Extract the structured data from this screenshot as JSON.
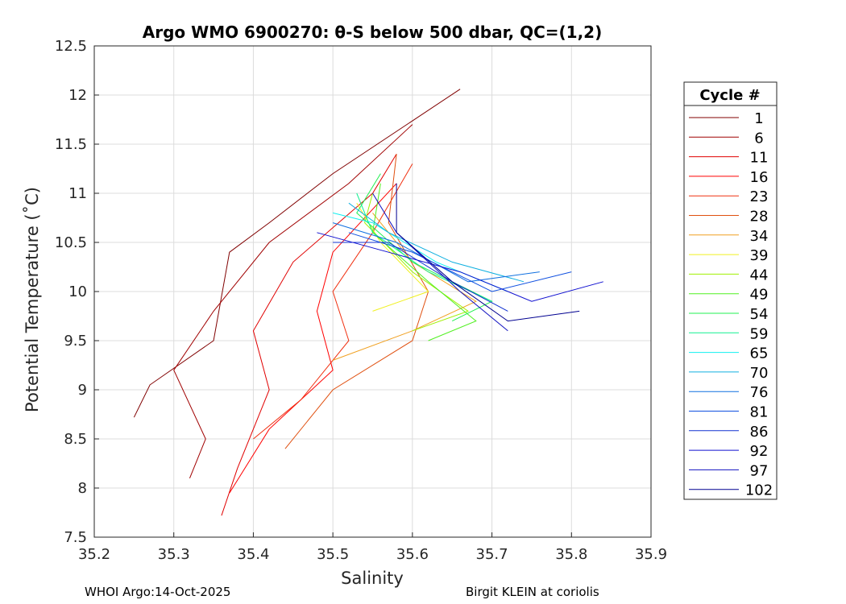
{
  "chart_data": {
    "type": "line",
    "title": "Argo WMO 6900270: θ-S below 500 dbar,  QC=(1,2)",
    "xlabel": "Salinity",
    "ylabel": "Potential Temperature (˚C)",
    "xlim": [
      35.2,
      35.9
    ],
    "ylim": [
      7.5,
      12.5
    ],
    "xticks": [
      35.2,
      35.3,
      35.4,
      35.5,
      35.6,
      35.7,
      35.8,
      35.9
    ],
    "yticks": [
      7.5,
      8,
      8.5,
      9,
      9.5,
      10,
      10.5,
      11,
      11.5,
      12,
      12.5
    ],
    "grid": true,
    "legend_title": "Cycle #",
    "legend_position": "outside-right",
    "series": [
      {
        "name": "1",
        "color": "#800000",
        "points": [
          [
            35.25,
            8.72
          ],
          [
            35.27,
            9.05
          ],
          [
            35.35,
            9.5
          ],
          [
            35.37,
            10.4
          ],
          [
            35.42,
            10.7
          ],
          [
            35.5,
            11.2
          ],
          [
            35.66,
            12.06
          ]
        ]
      },
      {
        "name": "6",
        "color": "#a00000",
        "points": [
          [
            35.32,
            8.1
          ],
          [
            35.34,
            8.5
          ],
          [
            35.3,
            9.2
          ],
          [
            35.35,
            9.8
          ],
          [
            35.42,
            10.5
          ],
          [
            35.52,
            11.1
          ],
          [
            35.6,
            11.7
          ]
        ]
      },
      {
        "name": "11",
        "color": "#e00000",
        "points": [
          [
            35.36,
            7.72
          ],
          [
            35.38,
            8.2
          ],
          [
            35.42,
            9.0
          ],
          [
            35.4,
            9.6
          ],
          [
            35.45,
            10.3
          ],
          [
            35.55,
            11.0
          ],
          [
            35.58,
            11.4
          ]
        ]
      },
      {
        "name": "16",
        "color": "#ff0000",
        "points": [
          [
            35.37,
            7.95
          ],
          [
            35.42,
            8.6
          ],
          [
            35.5,
            9.2
          ],
          [
            35.48,
            9.8
          ],
          [
            35.5,
            10.4
          ],
          [
            35.58,
            11.1
          ]
        ]
      },
      {
        "name": "23",
        "color": "#f03010",
        "points": [
          [
            35.4,
            8.5
          ],
          [
            35.46,
            8.9
          ],
          [
            35.52,
            9.5
          ],
          [
            35.5,
            10.0
          ],
          [
            35.55,
            10.6
          ],
          [
            35.6,
            11.3
          ]
        ]
      },
      {
        "name": "28",
        "color": "#e05010",
        "points": [
          [
            35.44,
            8.4
          ],
          [
            35.5,
            9.0
          ],
          [
            35.6,
            9.5
          ],
          [
            35.62,
            10.0
          ],
          [
            35.57,
            10.7
          ],
          [
            35.58,
            11.4
          ]
        ]
      },
      {
        "name": "34",
        "color": "#f0a020",
        "points": [
          [
            35.5,
            9.3
          ],
          [
            35.6,
            9.6
          ],
          [
            35.68,
            9.9
          ],
          [
            35.6,
            10.3
          ],
          [
            35.55,
            10.8
          ]
        ]
      },
      {
        "name": "39",
        "color": "#f0f020",
        "points": [
          [
            35.55,
            9.8
          ],
          [
            35.62,
            10.0
          ],
          [
            35.56,
            10.5
          ],
          [
            35.53,
            10.9
          ]
        ]
      },
      {
        "name": "44",
        "color": "#a0f000",
        "points": [
          [
            35.6,
            9.6
          ],
          [
            35.67,
            9.8
          ],
          [
            35.6,
            10.2
          ],
          [
            35.54,
            10.7
          ],
          [
            35.55,
            11.0
          ]
        ]
      },
      {
        "name": "49",
        "color": "#50f020",
        "points": [
          [
            35.62,
            9.5
          ],
          [
            35.68,
            9.7
          ],
          [
            35.62,
            10.1
          ],
          [
            35.55,
            10.6
          ],
          [
            35.56,
            11.1
          ]
        ]
      },
      {
        "name": "54",
        "color": "#20f050",
        "points": [
          [
            35.65,
            9.7
          ],
          [
            35.7,
            9.9
          ],
          [
            35.6,
            10.3
          ],
          [
            35.53,
            10.8
          ],
          [
            35.56,
            11.2
          ]
        ]
      },
      {
        "name": "59",
        "color": "#10f090",
        "points": [
          [
            35.7,
            9.9
          ],
          [
            35.62,
            10.2
          ],
          [
            35.55,
            10.6
          ],
          [
            35.53,
            11.0
          ]
        ]
      },
      {
        "name": "65",
        "color": "#10f0f0",
        "points": [
          [
            35.72,
            10.0
          ],
          [
            35.63,
            10.3
          ],
          [
            35.55,
            10.7
          ],
          [
            35.5,
            10.8
          ]
        ]
      },
      {
        "name": "70",
        "color": "#10b0e0",
        "points": [
          [
            35.74,
            10.1
          ],
          [
            35.65,
            10.3
          ],
          [
            35.57,
            10.6
          ],
          [
            35.52,
            10.9
          ]
        ]
      },
      {
        "name": "76",
        "color": "#1070e0",
        "points": [
          [
            35.76,
            10.2
          ],
          [
            35.67,
            10.1
          ],
          [
            35.58,
            10.5
          ],
          [
            35.5,
            10.7
          ]
        ]
      },
      {
        "name": "81",
        "color": "#1050e0",
        "points": [
          [
            35.8,
            10.2
          ],
          [
            35.7,
            10.0
          ],
          [
            35.6,
            10.4
          ],
          [
            35.52,
            10.6
          ]
        ]
      },
      {
        "name": "86",
        "color": "#1030d0",
        "points": [
          [
            35.72,
            9.8
          ],
          [
            35.65,
            10.1
          ],
          [
            35.57,
            10.5
          ],
          [
            35.5,
            10.5
          ]
        ]
      },
      {
        "name": "92",
        "color": "#1010d0",
        "points": [
          [
            35.84,
            10.1
          ],
          [
            35.75,
            9.9
          ],
          [
            35.66,
            10.2
          ],
          [
            35.57,
            10.4
          ],
          [
            35.48,
            10.6
          ]
        ]
      },
      {
        "name": "97",
        "color": "#1010c0",
        "points": [
          [
            35.72,
            9.6
          ],
          [
            35.66,
            10.0
          ],
          [
            35.58,
            10.6
          ],
          [
            35.55,
            11.0
          ]
        ]
      },
      {
        "name": "102",
        "color": "#000090",
        "points": [
          [
            35.81,
            9.8
          ],
          [
            35.72,
            9.7
          ],
          [
            35.65,
            10.1
          ],
          [
            35.58,
            10.6
          ],
          [
            35.58,
            11.1
          ]
        ]
      }
    ]
  },
  "footer": {
    "left": "WHOI Argo:14-Oct-2025",
    "right": "Birgit KLEIN at coriolis"
  }
}
